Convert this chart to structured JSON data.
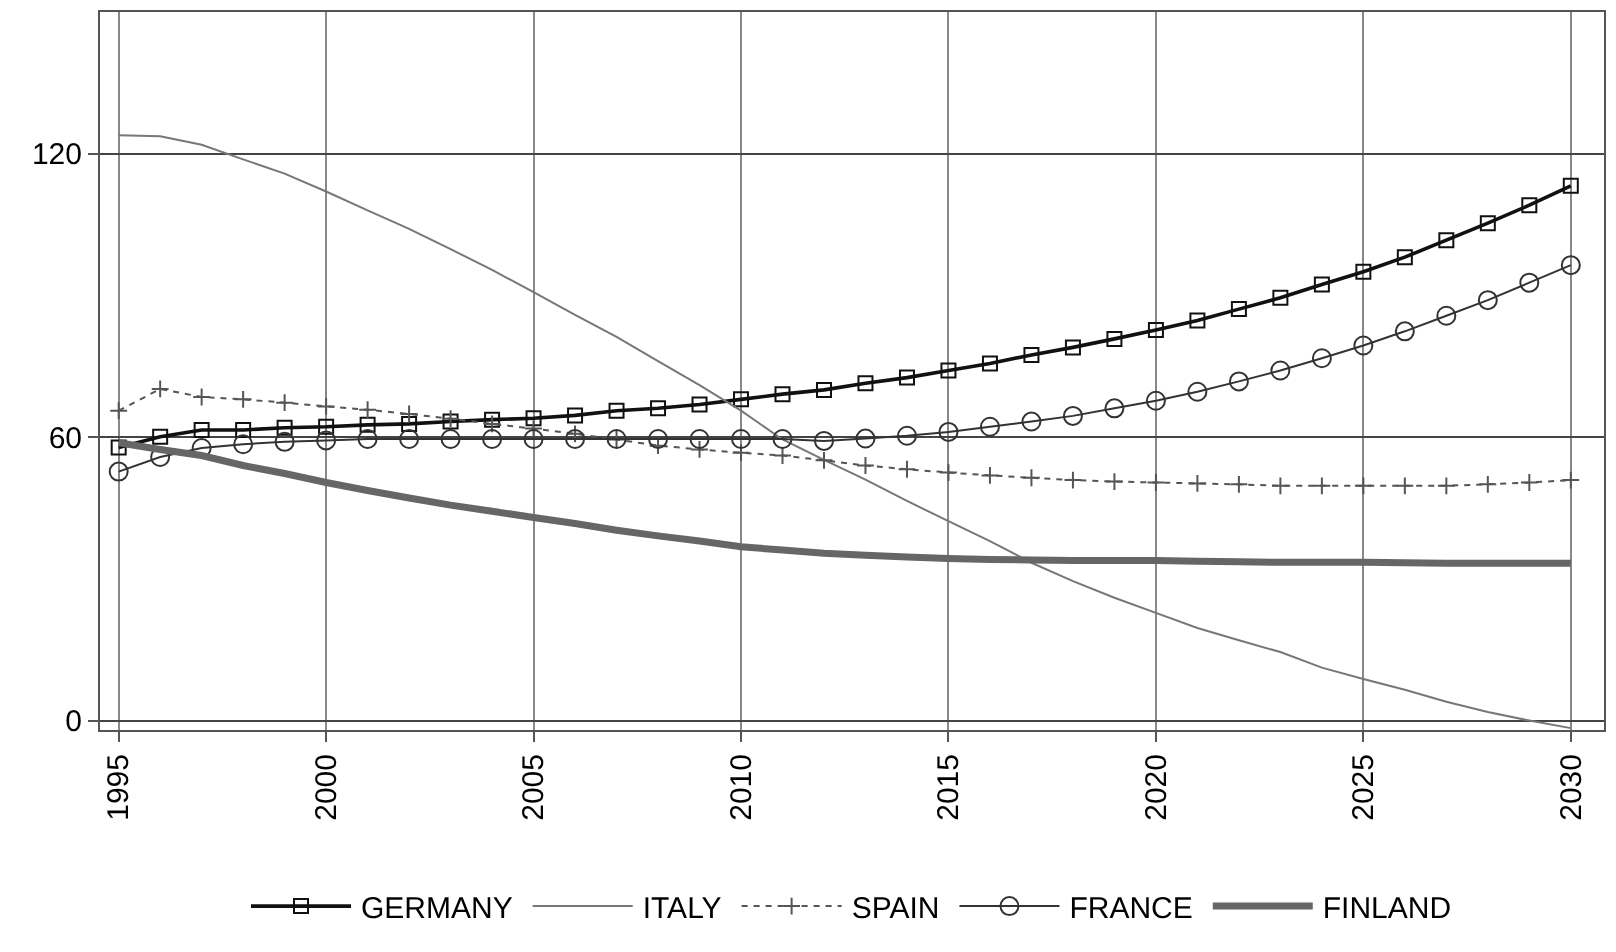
{
  "chart_data": {
    "type": "line",
    "x": [
      1995,
      1996,
      1997,
      1998,
      1999,
      2000,
      2001,
      2002,
      2003,
      2004,
      2005,
      2006,
      2007,
      2008,
      2009,
      2010,
      2011,
      2012,
      2013,
      2014,
      2015,
      2016,
      2017,
      2018,
      2019,
      2020,
      2021,
      2022,
      2023,
      2024,
      2025,
      2026,
      2027,
      2028,
      2029,
      2030
    ],
    "xlim": [
      1994.55,
      2030.8
    ],
    "xticks": [
      1995,
      2000,
      2005,
      2010,
      2015,
      2020,
      2025,
      2030
    ],
    "ylim": [
      -2,
      150
    ],
    "yticks": [
      0,
      60,
      120
    ],
    "grid": true,
    "legend": "bottom",
    "series": [
      {
        "name": "GERMANY",
        "color": "#111111",
        "marker": "square",
        "line_style": "solid",
        "values": [
          57.8,
          60.1,
          61.5,
          61.5,
          62,
          62.2,
          62.6,
          62.8,
          63.3,
          63.7,
          64,
          64.6,
          65.6,
          66.1,
          66.9,
          68,
          69.1,
          70,
          71.4,
          72.6,
          74.1,
          75.6,
          77.4,
          79,
          80.8,
          82.7,
          84.7,
          87.1,
          89.5,
          92.3,
          95,
          98.1,
          101.7,
          105.3,
          109.1,
          113.2
        ]
      },
      {
        "name": "ITALY",
        "color": "#777777",
        "marker": "none",
        "line_style": "solid",
        "values": [
          123.9,
          123.7,
          121.9,
          118.8,
          115.8,
          112,
          108,
          104.1,
          99.8,
          95.4,
          90.7,
          85.9,
          81.2,
          76.1,
          71,
          65.6,
          59.5,
          55.2,
          51,
          46.5,
          42.2,
          38,
          33.4,
          29.5,
          26,
          22.8,
          19.6,
          17,
          14.5,
          11.2,
          8.8,
          6.5,
          4,
          1.8,
          0,
          -1.6
        ]
      },
      {
        "name": "SPAIN",
        "color": "#555555",
        "marker": "cross",
        "line_style": "dotted",
        "values": [
          65.6,
          70.2,
          68.5,
          68,
          67.3,
          66.5,
          65.8,
          64.9,
          63.9,
          62.8,
          61.8,
          60.7,
          59.5,
          58.2,
          57.4,
          56.7,
          56.1,
          55.1,
          54,
          53.2,
          52.5,
          51.9,
          51.4,
          50.9,
          50.6,
          50.4,
          50.2,
          50,
          49.7,
          49.7,
          49.7,
          49.7,
          49.7,
          50,
          50.4,
          50.9
        ]
      },
      {
        "name": "FRANCE",
        "color": "#333333",
        "marker": "circle",
        "line_style": "solid",
        "values": [
          52.7,
          55.8,
          57.7,
          58.5,
          59,
          59.3,
          59.6,
          59.6,
          59.6,
          59.6,
          59.6,
          59.6,
          59.6,
          59.6,
          59.6,
          59.6,
          59.6,
          59.2,
          59.7,
          60.3,
          61.1,
          62.2,
          63.3,
          64.5,
          66.1,
          67.7,
          69.6,
          71.8,
          74.1,
          76.7,
          79.4,
          82.4,
          85.7,
          89,
          92.7,
          96.4
        ]
      },
      {
        "name": "FINLAND",
        "color": "#666666",
        "marker": "none",
        "line_style": "solid",
        "values": [
          58.8,
          57.4,
          56.1,
          54,
          52.3,
          50.4,
          48.7,
          47.1,
          45.6,
          44.3,
          43,
          41.7,
          40.3,
          39.1,
          38,
          36.8,
          36.1,
          35.4,
          35,
          34.6,
          34.3,
          34.1,
          34,
          33.9,
          33.9,
          33.9,
          33.7,
          33.6,
          33.5,
          33.5,
          33.5,
          33.4,
          33.3,
          33.3,
          33.3,
          33.3
        ]
      }
    ]
  }
}
